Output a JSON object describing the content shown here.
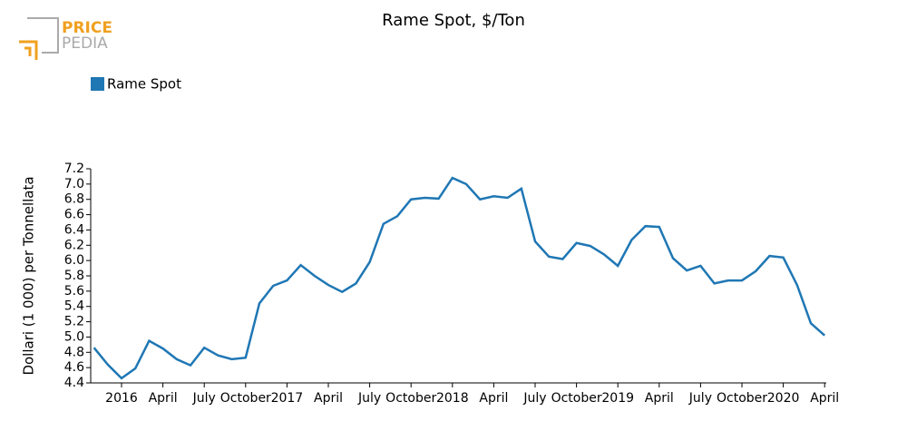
{
  "logo": {
    "line1": "PRICE",
    "line2": "PEDIA"
  },
  "chart_data": {
    "type": "line",
    "title": "Rame Spot, $/Ton",
    "y_label": "Dollari (1 000) per Tonnellata",
    "categories": [
      null,
      null,
      "2016",
      null,
      null,
      "April",
      null,
      null,
      "July",
      null,
      null,
      "October",
      null,
      null,
      "2017",
      null,
      null,
      "April",
      null,
      null,
      "July",
      null,
      null,
      "October",
      null,
      null,
      "2018",
      null,
      null,
      "April",
      null,
      null,
      "July",
      null,
      null,
      "October",
      null,
      null,
      "2019",
      null,
      null,
      "April",
      null,
      null,
      "July",
      null,
      null,
      "October",
      null,
      null,
      "2020",
      null,
      null,
      "April"
    ],
    "series": [
      {
        "name": "Rame Spot",
        "color": "#1f77b4",
        "values": [
          4.86,
          4.64,
          4.46,
          4.59,
          4.95,
          4.85,
          4.71,
          4.63,
          4.86,
          4.76,
          4.71,
          4.73,
          5.44,
          5.67,
          5.74,
          5.94,
          5.8,
          5.68,
          5.59,
          5.7,
          5.98,
          6.48,
          6.58,
          6.8,
          6.82,
          6.81,
          7.08,
          7.0,
          6.8,
          6.84,
          6.82,
          6.94,
          6.25,
          6.05,
          6.02,
          6.23,
          6.19,
          6.08,
          5.93,
          6.27,
          6.45,
          6.44,
          6.03,
          5.87,
          5.93,
          5.7,
          5.74,
          5.74,
          5.86,
          6.06,
          6.04,
          5.68,
          5.18,
          5.02
        ]
      }
    ],
    "ylim": [
      4.4,
      7.2
    ],
    "yticks": [
      4.4,
      4.6,
      4.8,
      {
        "value": 5.0,
        "label": "5.0"
      },
      5.2,
      5.4,
      5.6,
      5.8,
      {
        "value": 6.0,
        "label": "6.0"
      },
      6.2,
      6.4,
      6.6,
      6.8,
      {
        "value": 7.0,
        "label": "7.0"
      },
      7.2
    ],
    "legend": "top-left"
  }
}
